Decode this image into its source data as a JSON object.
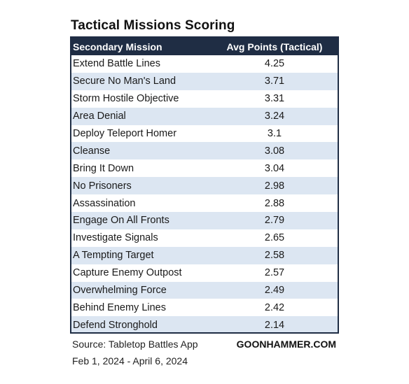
{
  "chart_data": {
    "type": "table",
    "title": "Tactical Missions Scoring",
    "columns": [
      "Secondary Mission",
      "Avg Points (Tactical)"
    ],
    "rows": [
      [
        "Extend Battle Lines",
        "4.25"
      ],
      [
        "Secure No Man's Land",
        "3.71"
      ],
      [
        "Storm Hostile Objective",
        "3.31"
      ],
      [
        "Area Denial",
        "3.24"
      ],
      [
        "Deploy Teleport Homer",
        "3.1"
      ],
      [
        "Cleanse",
        "3.08"
      ],
      [
        "Bring It Down",
        "3.04"
      ],
      [
        "No Prisoners",
        "2.98"
      ],
      [
        "Assassination",
        "2.88"
      ],
      [
        "Engage On All Fronts",
        "2.79"
      ],
      [
        "Investigate Signals",
        "2.65"
      ],
      [
        "A Tempting Target",
        "2.58"
      ],
      [
        "Capture Enemy Outpost",
        "2.57"
      ],
      [
        "Overwhelming Force",
        "2.49"
      ],
      [
        "Behind Enemy Lines",
        "2.42"
      ],
      [
        "Defend Stronghold",
        "2.14"
      ]
    ],
    "colors": {
      "header_bg": "#1f2d44",
      "header_text": "#ffffff",
      "band_even": "#dce6f2",
      "band_odd": "#ffffff"
    }
  },
  "footer": {
    "source": "Source: Tabletop Battles App",
    "brand": "GOONHAMMER.COM",
    "dates": "Feb 1, 2024 - April 6, 2024"
  }
}
